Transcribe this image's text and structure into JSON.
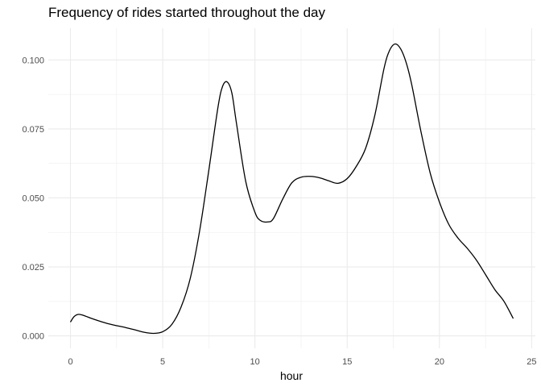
{
  "chart_data": {
    "type": "line",
    "title": "Frequency of rides started throughout the day",
    "xlabel": "hour",
    "ylabel": "",
    "xlim": [
      -1.2,
      25.2
    ],
    "ylim": [
      -0.0045,
      0.1115
    ],
    "x_ticks": [
      0,
      5,
      10,
      15,
      20,
      25
    ],
    "x_tick_labels": [
      "0",
      "5",
      "10",
      "15",
      "20",
      "25"
    ],
    "y_ticks": [
      0.0,
      0.025,
      0.05,
      0.075,
      0.1
    ],
    "y_tick_labels": [
      "0.000",
      "0.025",
      "0.050",
      "0.075",
      "0.100"
    ],
    "grid": true,
    "legend": "none",
    "line_color": "#000000",
    "series": [
      {
        "x": [
          0,
          0.2,
          0.45,
          0.8,
          1.2,
          2,
          3,
          3.5,
          4,
          4.5,
          5,
          5.5,
          6,
          6.5,
          7,
          7.5,
          8,
          8.25,
          8.5,
          8.75,
          9,
          9.5,
          10,
          10.3,
          10.7,
          11,
          11.5,
          12,
          12.5,
          13,
          13.5,
          14,
          14.5,
          15,
          15.5,
          16,
          16.5,
          17,
          17.3,
          17.6,
          17.9,
          18.2,
          18.5,
          19,
          19.5,
          20,
          20.5,
          21,
          21.5,
          22,
          22.5,
          23,
          23.5,
          24
        ],
        "y": [
          0.005,
          0.007,
          0.0078,
          0.0072,
          0.0062,
          0.0045,
          0.003,
          0.0022,
          0.0013,
          0.0009,
          0.0015,
          0.0042,
          0.0105,
          0.021,
          0.038,
          0.06,
          0.083,
          0.0905,
          0.092,
          0.088,
          0.077,
          0.056,
          0.0448,
          0.0418,
          0.0413,
          0.0425,
          0.0495,
          0.0555,
          0.0575,
          0.0578,
          0.0573,
          0.0562,
          0.0553,
          0.057,
          0.0615,
          0.068,
          0.08,
          0.097,
          0.1035,
          0.1058,
          0.104,
          0.099,
          0.091,
          0.074,
          0.059,
          0.0485,
          0.0405,
          0.0355,
          0.0318,
          0.0275,
          0.0222,
          0.0168,
          0.0125,
          0.0063
        ]
      }
    ]
  }
}
